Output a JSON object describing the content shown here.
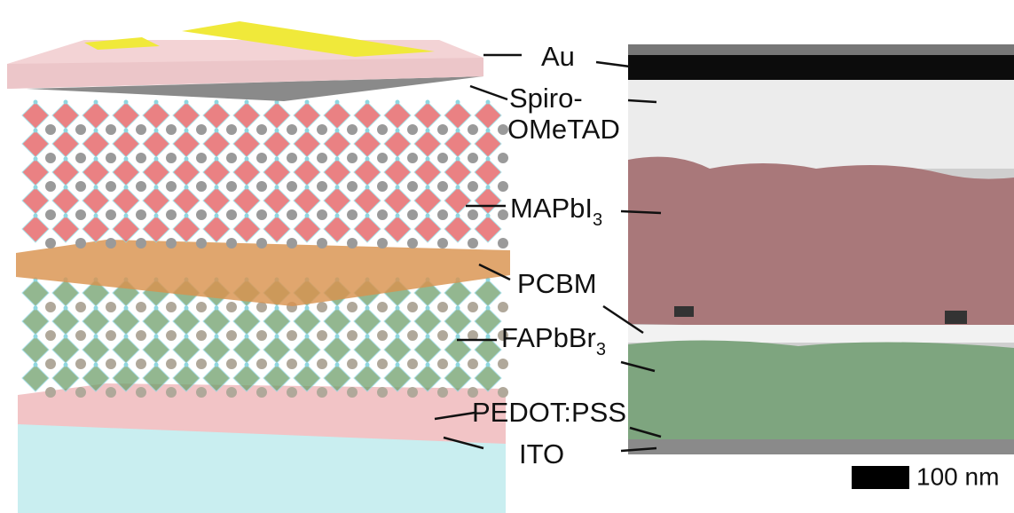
{
  "labels": {
    "au": "Au",
    "spiro_line1": "Spiro-",
    "spiro_line2": "OMeTAD",
    "mapbi3": {
      "text": "MAPbI",
      "sub": "3"
    },
    "pcbm": "PCBM",
    "fapbbr3": {
      "text": "FAPbBr",
      "sub": "3"
    },
    "pedot": "PEDOT:PSS",
    "ito": "ITO"
  },
  "scale_bar": "100 nm"
}
